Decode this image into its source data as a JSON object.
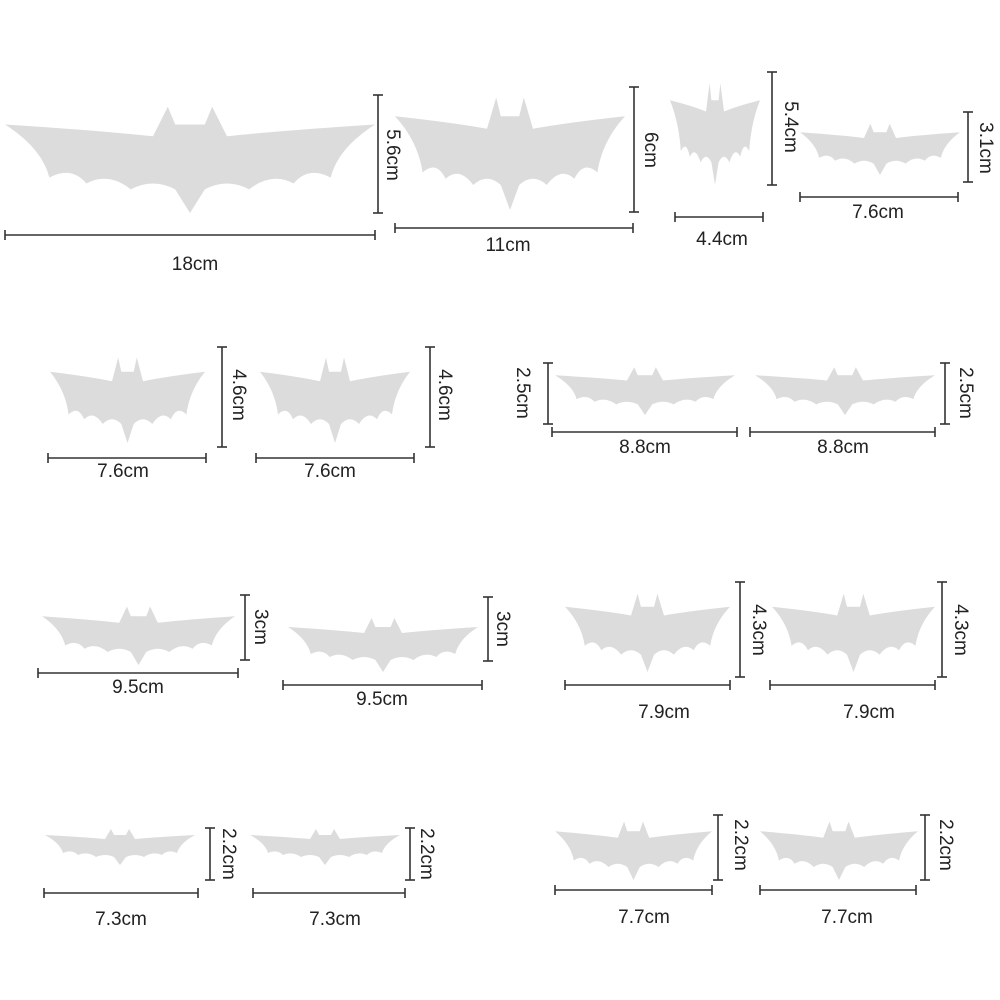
{
  "bats": [
    {
      "width": "18cm",
      "height": "5.6cm"
    },
    {
      "width": "11cm",
      "height": "6cm"
    },
    {
      "width": "4.4cm",
      "height": "5.4cm"
    },
    {
      "width": "7.6cm",
      "height": "3.1cm"
    },
    {
      "width": "7.6cm",
      "height": "4.6cm"
    },
    {
      "width": "7.6cm",
      "height": "4.6cm"
    },
    {
      "width": "8.8cm",
      "height": "2.5cm"
    },
    {
      "width": "8.8cm",
      "height": "2.5cm"
    },
    {
      "width": "9.5cm",
      "height": "3cm"
    },
    {
      "width": "9.5cm",
      "height": "3cm"
    },
    {
      "width": "7.9cm",
      "height": "4.3cm"
    },
    {
      "width": "7.9cm",
      "height": "4.3cm"
    },
    {
      "width": "7.3cm",
      "height": "2.2cm"
    },
    {
      "width": "7.3cm",
      "height": "2.2cm"
    },
    {
      "width": "7.7cm",
      "height": "2.2cm"
    },
    {
      "width": "7.7cm",
      "height": "2.2cm"
    }
  ]
}
